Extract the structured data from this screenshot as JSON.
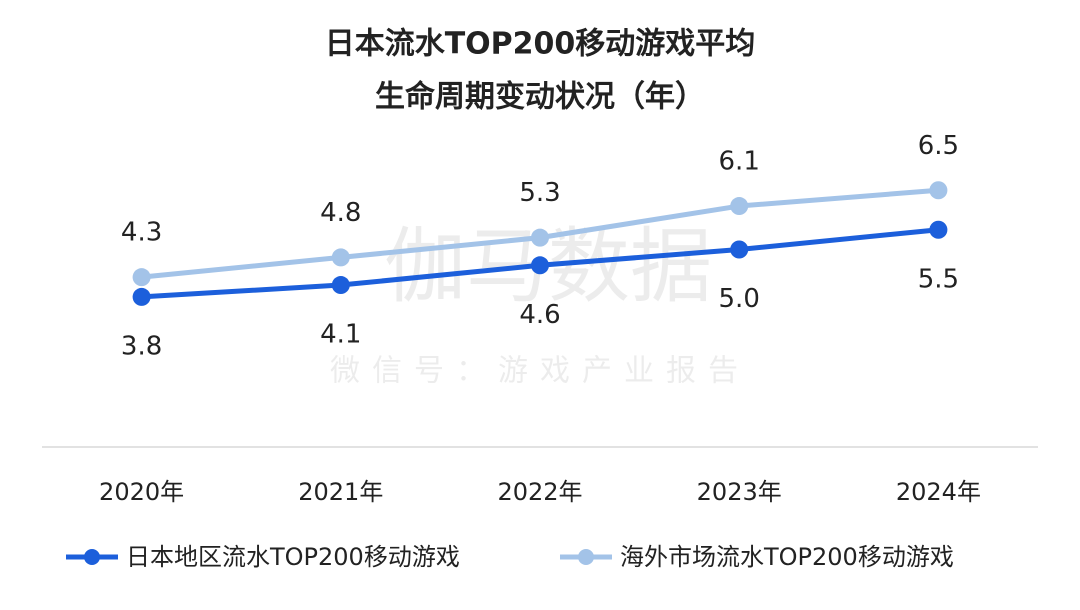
{
  "chart_data": {
    "type": "line",
    "title": [
      "日本流水TOP200移动游戏平均",
      "生命周期变动状况（年）"
    ],
    "watermark": [
      "伽马数据",
      "微信号：游戏产业报告"
    ],
    "categories": [
      "2020年",
      "2021年",
      "2022年",
      "2023年",
      "2024年"
    ],
    "series": [
      {
        "name": "日本地区流水TOP200移动游戏",
        "color": "#1c5fdb",
        "values": [
          3.8,
          4.1,
          4.6,
          5.0,
          5.5
        ],
        "value_labels": [
          "3.8",
          "4.1",
          "4.6",
          "5.0",
          "5.5"
        ],
        "label_position": "below"
      },
      {
        "name": "海外市场流水TOP200移动游戏",
        "color": "#a3c3e8",
        "values": [
          4.3,
          4.8,
          5.3,
          6.1,
          6.5
        ],
        "label_position": "above"
      }
    ],
    "ylim": [
      0,
      8
    ]
  }
}
